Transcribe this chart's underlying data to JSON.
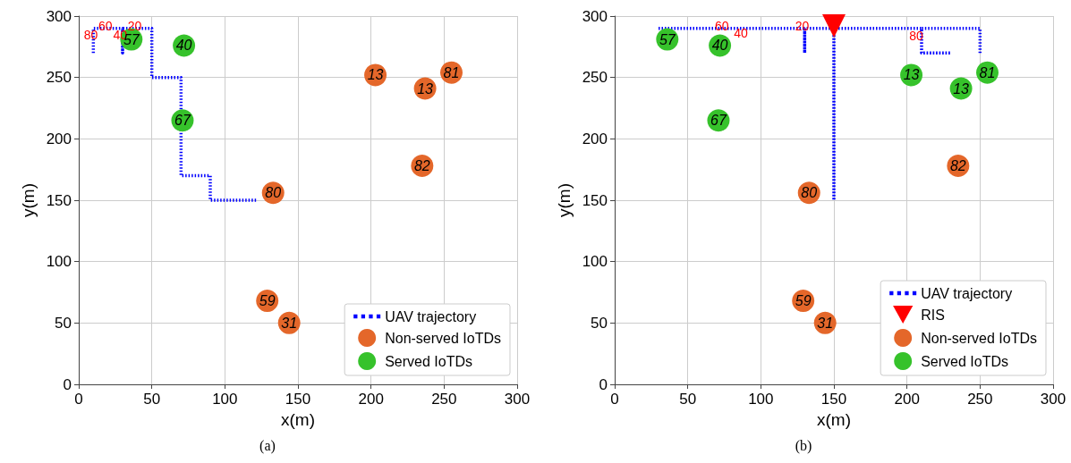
{
  "chart_data": [
    {
      "type": "scatter",
      "xlabel": "x(m)",
      "ylabel": "y(m)",
      "xlim": [
        0,
        300
      ],
      "ylim": [
        0,
        300
      ],
      "xticks": [
        0,
        50,
        100,
        150,
        200,
        250,
        300
      ],
      "yticks": [
        0,
        50,
        100,
        150,
        200,
        250,
        300
      ],
      "grid": true,
      "legend": "bottom right",
      "series": [
        {
          "name": "UAV trajectory",
          "type": "line",
          "color": "#0000ff",
          "marker": "none",
          "line_style": "dotted",
          "x": [
            10,
            10,
            30,
            30,
            30,
            50,
            50,
            70,
            70,
            90,
            90,
            122
          ],
          "values": [
            270,
            290,
            290,
            270,
            290,
            290,
            250,
            250,
            170,
            170,
            150,
            150
          ]
        },
        {
          "name": "Non-served IoTDs",
          "type": "scatter",
          "color": "#e4672a",
          "marker": "circle",
          "x": [
            133,
            203,
            237,
            255,
            235,
            129,
            144
          ],
          "values": [
            156,
            252,
            241,
            254,
            178,
            68,
            50
          ]
        },
        {
          "name": "Served IoTDs",
          "type": "scatter",
          "color": "#36c22b",
          "marker": "circle",
          "x": [
            36,
            72,
            71
          ],
          "values": [
            281,
            276,
            215
          ]
        }
      ],
      "annotations": [
        {
          "text": "80",
          "x": 10,
          "y": 285
        },
        {
          "text": "60",
          "x": 20,
          "y": 292
        },
        {
          "text": "40",
          "x": 30,
          "y": 285
        },
        {
          "text": "20",
          "x": 40,
          "y": 292
        },
        {
          "text": "80",
          "x": 133,
          "y": 156
        },
        {
          "text": "13",
          "x": 203,
          "y": 252
        },
        {
          "text": "13",
          "x": 237,
          "y": 241
        },
        {
          "text": "81",
          "x": 255,
          "y": 254
        },
        {
          "text": "82",
          "x": 235,
          "y": 178
        },
        {
          "text": "59",
          "x": 129,
          "y": 68
        },
        {
          "text": "31",
          "x": 144,
          "y": 50
        },
        {
          "text": "57",
          "x": 36,
          "y": 281
        },
        {
          "text": "40",
          "x": 72,
          "y": 276
        },
        {
          "text": "67",
          "x": 71,
          "y": 215
        },
        "(a)"
      ]
    },
    {
      "type": "scatter",
      "xlabel": "x(m)",
      "ylabel": "y(m)",
      "xlim": [
        0,
        300
      ],
      "ylim": [
        0,
        300
      ],
      "xticks": [
        0,
        50,
        100,
        150,
        200,
        250,
        300
      ],
      "yticks": [
        0,
        50,
        100,
        150,
        200,
        250,
        300
      ],
      "grid": true,
      "legend": "bottom right",
      "series": [
        {
          "name": "UAV trajectory",
          "type": "line",
          "color": "#0000ff",
          "marker": "none",
          "line_style": "dotted",
          "x": [
            30,
            130,
            130,
            130,
            150,
            150,
            150,
            210,
            210,
            230,
            210,
            210,
            250,
            250
          ],
          "values": [
            290,
            290,
            270,
            290,
            290,
            150,
            290,
            290,
            270,
            270,
            270,
            290,
            290,
            270
          ]
        },
        {
          "name": "RIS",
          "type": "scatter",
          "color": "#ff0000",
          "marker": "triangle",
          "x": [
            150
          ],
          "values": [
            292
          ]
        },
        {
          "name": "Non-served IoTDs",
          "type": "scatter",
          "color": "#e4672a",
          "marker": "circle",
          "x": [
            133,
            235,
            129,
            144
          ],
          "values": [
            156,
            178,
            68,
            50
          ]
        },
        {
          "name": "Served IoTDs",
          "type": "scatter",
          "color": "#36c22b",
          "marker": "circle",
          "x": [
            36,
            72,
            71,
            203,
            237,
            255
          ],
          "values": [
            281,
            276,
            215,
            252,
            241,
            254
          ]
        }
      ],
      "annotations": [
        {
          "text": "60",
          "x": 75,
          "y": 292
        },
        {
          "text": "40",
          "x": 88,
          "y": 286
        },
        {
          "text": "20",
          "x": 130,
          "y": 292
        },
        {
          "text": "80",
          "x": 208,
          "y": 284
        },
        {
          "text": "80",
          "x": 133,
          "y": 156
        },
        {
          "text": "82",
          "x": 235,
          "y": 178
        },
        {
          "text": "59",
          "x": 129,
          "y": 68
        },
        {
          "text": "31",
          "x": 144,
          "y": 50
        },
        {
          "text": "57",
          "x": 36,
          "y": 281
        },
        {
          "text": "40",
          "x": 72,
          "y": 276
        },
        {
          "text": "67",
          "x": 71,
          "y": 215
        },
        {
          "text": "13",
          "x": 203,
          "y": 252
        },
        {
          "text": "13",
          "x": 237,
          "y": 241
        },
        {
          "text": "81",
          "x": 255,
          "y": 254
        },
        "(b)"
      ]
    }
  ]
}
